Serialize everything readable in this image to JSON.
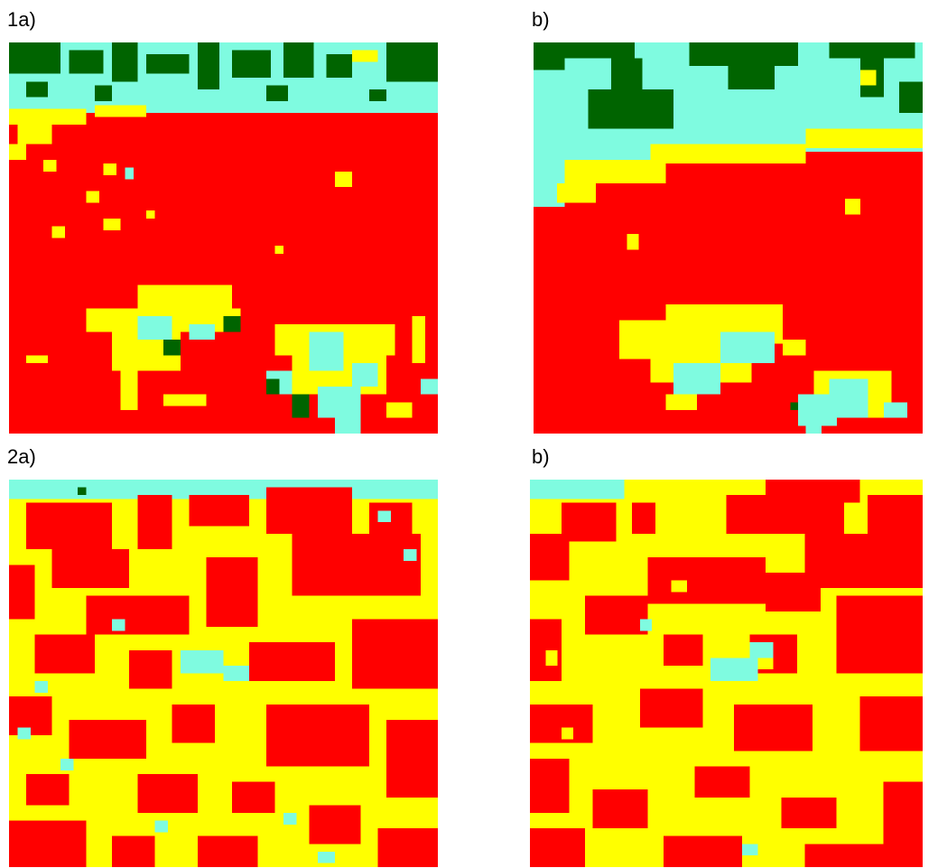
{
  "palette": {
    "red": "#ff0000",
    "yellow": "#ffff00",
    "cyan": "#7ffbe0",
    "dark_green": "#006400"
  },
  "panels": [
    {
      "id": "p1a",
      "label": "1a)"
    },
    {
      "id": "p1b",
      "label": "b)"
    },
    {
      "id": "p2a",
      "label": "2a)"
    },
    {
      "id": "p2b",
      "label": "b)"
    }
  ]
}
